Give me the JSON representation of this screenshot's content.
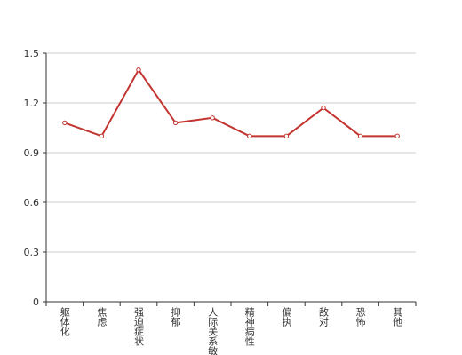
{
  "chart_data": {
    "type": "line",
    "categories": [
      "躯体化",
      "焦虑",
      "强迫症状",
      "抑郁",
      "人际关系敏感",
      "精神病性",
      "偏执",
      "敌对",
      "恐怖",
      "其他"
    ],
    "values": [
      1.08,
      1.0,
      1.4,
      1.08,
      1.11,
      1.0,
      1.0,
      1.17,
      1.0,
      1.0
    ],
    "color": "#c23531",
    "ylim": [
      0,
      1.5
    ],
    "yticks": [
      0,
      0.3,
      0.6,
      0.9,
      1.2,
      1.5
    ],
    "grid": true
  }
}
